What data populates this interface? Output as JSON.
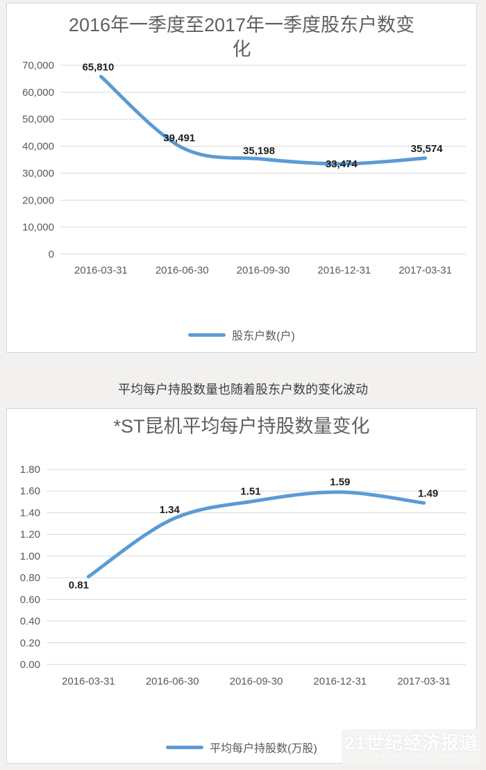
{
  "page_background": "#f2f1ef",
  "caption": "平均每户持股数量也随着股东户数的变化波动",
  "watermark": {
    "line1": "21世纪经济报道",
    "line2": "21ST CENTURY BUSINESS HERALD"
  },
  "chart_data": [
    {
      "type": "line",
      "title": "2016年一季度至2017年一季度股东户数变化",
      "categories": [
        "2016-03-31",
        "2016-06-30",
        "2016-09-30",
        "2016-12-31",
        "2017-03-31"
      ],
      "series": [
        {
          "name": "股东户数(户)",
          "values": [
            65810,
            39491,
            35198,
            33474,
            35574
          ]
        }
      ],
      "data_labels": [
        "65,810",
        "39,491",
        "35,198",
        "33,474",
        "35,574"
      ],
      "ylim": [
        0,
        70000
      ],
      "ytick_labels": [
        "0",
        "10,000",
        "20,000",
        "30,000",
        "40,000",
        "50,000",
        "60,000",
        "70,000"
      ],
      "xlabel": "",
      "ylabel": "",
      "grid": true,
      "legend_position": "bottom",
      "line_color": "#5b9bd5",
      "smooth": true
    },
    {
      "type": "line",
      "title": "*ST昆机平均每户持股数量变化",
      "categories": [
        "2016-03-31",
        "2016-06-30",
        "2016-09-30",
        "2016-12-31",
        "2017-03-31"
      ],
      "series": [
        {
          "name": "平均每户持股数(万股)",
          "values": [
            0.81,
            1.34,
            1.51,
            1.59,
            1.49
          ]
        }
      ],
      "data_labels": [
        "0.81",
        "1.34",
        "1.51",
        "1.59",
        "1.49"
      ],
      "ylim": [
        0,
        1.8
      ],
      "ytick_labels": [
        "0.00",
        "0.20",
        "0.40",
        "0.60",
        "0.80",
        "1.00",
        "1.20",
        "1.40",
        "1.60",
        "1.80"
      ],
      "xlabel": "",
      "ylabel": "",
      "grid": true,
      "legend_position": "bottom",
      "line_color": "#5b9bd5",
      "smooth": true
    }
  ]
}
